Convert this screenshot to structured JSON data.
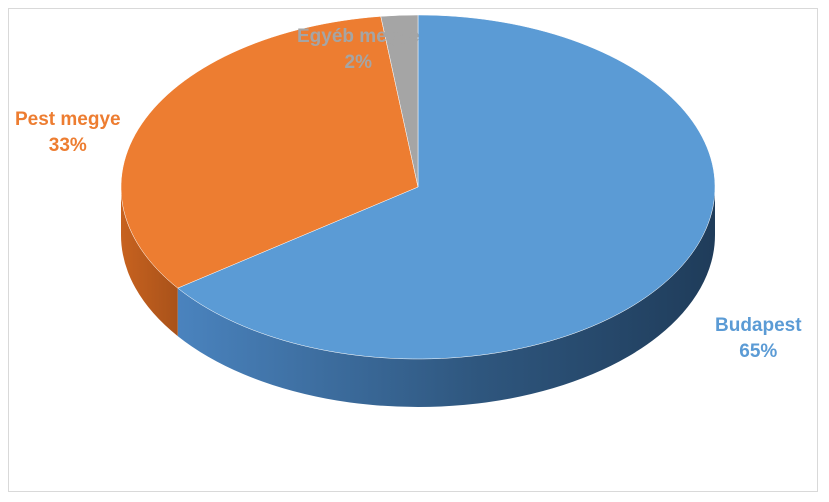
{
  "chart_data": {
    "type": "pie",
    "title": "",
    "style": "3d",
    "legend": "none",
    "slices": [
      {
        "label": "Budapest",
        "value": 65,
        "value_label": "65%",
        "color": "#5B9BD5"
      },
      {
        "label": "Pest megye",
        "value": 33,
        "value_label": "33%",
        "color": "#ED7D31"
      },
      {
        "label": "Egyéb megye",
        "value": 2,
        "value_label": "2%",
        "color": "#A5A5A5"
      }
    ]
  }
}
